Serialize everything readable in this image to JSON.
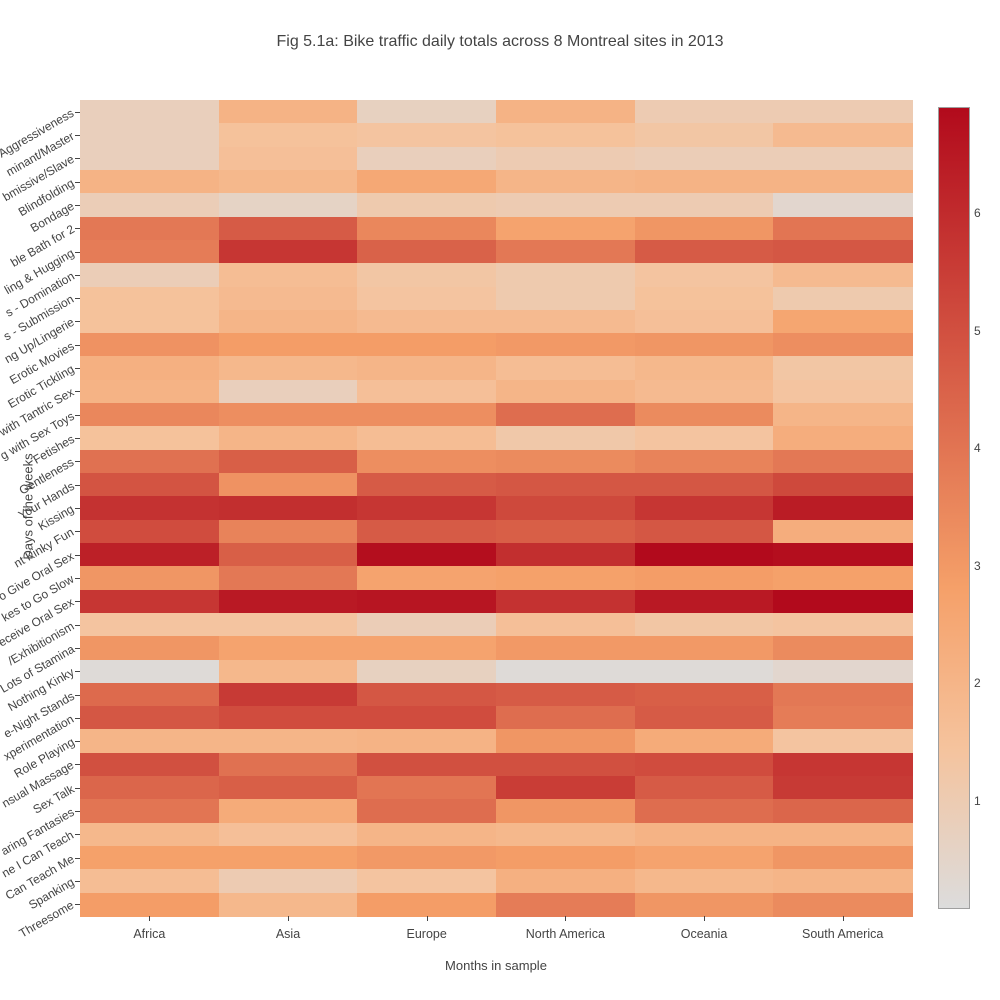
{
  "chart_data": {
    "type": "heatmap",
    "title": "Fig 5.1a: Bike traffic daily totals across 8 Montreal sites in 2013",
    "xlabel": "Months in sample",
    "ylabel": "Days of the weeks",
    "legend_position": "right",
    "grid": false,
    "columns": [
      "Africa",
      "Asia",
      "Europe",
      "North America",
      "Oceania",
      "South America"
    ],
    "rows": [
      "Aggressiveness",
      "minant/Master",
      "bmissive/Slave",
      "Blindfolding",
      "Bondage",
      "ble Bath for 2",
      "ling & Hugging",
      "s - Domination",
      "s - Submission",
      "ng Up/Lingerie",
      "Erotic Movies",
      "Erotic Tickling",
      "with Tantric Sex",
      "g with Sex Toys",
      "Fetishes",
      "Gentleness",
      "Your Hands",
      "Kissing",
      "nt Kinky Fun",
      "o Give Oral Sex",
      "kes to Go Slow",
      "eceive Oral Sex",
      "/Exhibitionism",
      "Lots of Stamina",
      "Nothing Kinky",
      "e-Night Stands",
      "xperimentation",
      "Role Playing",
      "nsual Massage",
      "Sex Talk",
      "aring Fantasies",
      "ne I Can Teach",
      "Can Teach Me",
      "Spanking",
      "Threesome"
    ],
    "values": [
      [
        0.8,
        2.1,
        0.7,
        2.1,
        1.0,
        1.0
      ],
      [
        0.8,
        1.5,
        1.4,
        1.5,
        1.3,
        1.8
      ],
      [
        0.8,
        1.6,
        0.8,
        1.0,
        0.9,
        0.9
      ],
      [
        2.1,
        1.9,
        2.5,
        2.0,
        2.1,
        2.1
      ],
      [
        0.9,
        0.6,
        1.1,
        1.0,
        1.0,
        0.4
      ],
      [
        3.9,
        4.7,
        3.5,
        2.7,
        3.1,
        4.0
      ],
      [
        3.8,
        5.7,
        4.5,
        3.9,
        4.7,
        4.8
      ],
      [
        0.9,
        1.7,
        1.3,
        1.1,
        1.4,
        1.8
      ],
      [
        1.5,
        1.8,
        1.4,
        1.1,
        1.5,
        1.1
      ],
      [
        1.5,
        2.0,
        1.8,
        1.8,
        1.6,
        2.6
      ],
      [
        3.2,
        2.9,
        2.9,
        3.0,
        3.1,
        3.3
      ],
      [
        2.2,
        1.9,
        2.0,
        1.7,
        1.9,
        1.3
      ],
      [
        2.1,
        0.8,
        1.6,
        2.0,
        1.8,
        1.4
      ],
      [
        3.5,
        3.3,
        3.3,
        4.2,
        3.4,
        2.0
      ],
      [
        1.5,
        2.0,
        1.7,
        1.2,
        1.4,
        2.3
      ],
      [
        4.1,
        4.6,
        3.3,
        3.4,
        3.6,
        3.9
      ],
      [
        4.9,
        3.2,
        4.7,
        4.8,
        4.8,
        5.2
      ],
      [
        5.8,
        5.9,
        5.7,
        5.2,
        5.7,
        6.4
      ],
      [
        5.1,
        3.6,
        4.7,
        4.6,
        4.8,
        2.3
      ],
      [
        6.3,
        4.6,
        6.8,
        5.9,
        6.9,
        6.8
      ],
      [
        3.1,
        3.9,
        2.7,
        2.8,
        2.9,
        2.8
      ],
      [
        5.7,
        6.5,
        6.6,
        5.8,
        6.5,
        6.9
      ],
      [
        1.4,
        1.4,
        0.9,
        1.6,
        1.3,
        1.4
      ],
      [
        3.1,
        2.7,
        2.7,
        3.0,
        3.0,
        3.4
      ],
      [
        0.2,
        1.9,
        0.7,
        0.2,
        0.2,
        0.4
      ],
      [
        4.3,
        5.6,
        4.8,
        4.7,
        4.6,
        3.9
      ],
      [
        4.8,
        5.1,
        5.1,
        4.2,
        4.7,
        3.8
      ],
      [
        2.0,
        2.0,
        2.1,
        3.1,
        2.4,
        1.4
      ],
      [
        5.0,
        4.1,
        5.0,
        5.0,
        5.1,
        5.7
      ],
      [
        4.4,
        4.6,
        4.0,
        5.5,
        4.7,
        5.6
      ],
      [
        4.0,
        2.4,
        4.2,
        3.1,
        4.2,
        4.4
      ],
      [
        1.9,
        1.6,
        2.0,
        1.9,
        2.1,
        2.1
      ],
      [
        2.8,
        2.8,
        3.0,
        2.9,
        2.7,
        3.1
      ],
      [
        1.7,
        1.0,
        1.4,
        2.2,
        1.9,
        2.0
      ],
      [
        2.9,
        1.9,
        2.9,
        3.8,
        3.1,
        3.4
      ]
    ],
    "zmin": 0.1,
    "zmax": 6.9,
    "colorbar_ticks": [
      1,
      2,
      3,
      4,
      5,
      6
    ],
    "colorscale": [
      [
        0.0,
        "#dcdcdc"
      ],
      [
        0.2,
        "#f5c39d"
      ],
      [
        0.4,
        "#f5a069"
      ],
      [
        1.0,
        "#b20a1c"
      ]
    ],
    "colors": {
      "text": "#444444",
      "background": "#ffffff",
      "colorbar_border": "#9f9f9f"
    }
  }
}
